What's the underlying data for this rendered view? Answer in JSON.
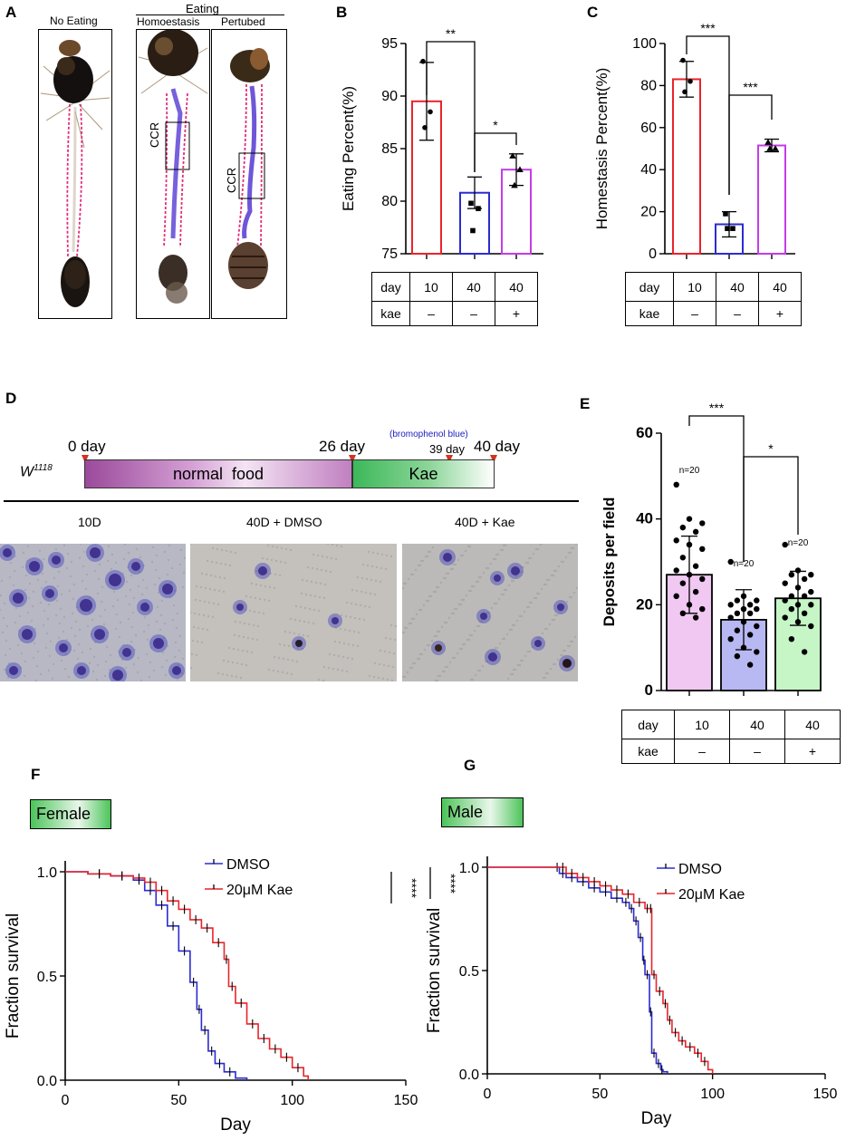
{
  "panels": {
    "A": {
      "letter": "A",
      "no_eating": "No Eating",
      "eating": "Eating",
      "homeostasis": "Homoestasis",
      "perturbed": "Pertubed",
      "ccr": "CCR"
    },
    "B": {
      "letter": "B"
    },
    "C": {
      "letter": "C"
    },
    "D": {
      "letter": "D",
      "day0": "0 day",
      "day26": "26 day",
      "day39": "39 day",
      "day40": "40 day",
      "dye": "(bromophenol blue)",
      "strain": "W",
      "strain_sup": "1118",
      "normal_food": "normal  food",
      "kae": "Kae",
      "img_labels": [
        "10D",
        "40D + DMSO",
        "40D + Kae"
      ]
    },
    "E": {
      "letter": "E"
    },
    "F": {
      "letter": "F",
      "badge": "Female"
    },
    "G": {
      "letter": "G",
      "badge": "Male"
    }
  },
  "condition_table": {
    "row1": [
      "day",
      "10",
      "40",
      "40"
    ],
    "row2": [
      "kae",
      "–",
      "–",
      "+"
    ]
  },
  "colors": {
    "red": "#e8242b",
    "blue": "#2b2bd1",
    "magenta": "#c43ce6",
    "purple_food": "#9b4a9b",
    "green_kae": "#3cb85a",
    "pink_fill": "#f0c8f2",
    "lavender_fill": "#b8b8f2",
    "mint_fill": "#c6f6c6",
    "arrow": "#d4331e",
    "dye_blue": "#2020c0"
  },
  "chart_data": [
    {
      "id": "B",
      "type": "bar",
      "categories": [
        "10 day, kae –",
        "40 day, kae –",
        "40 day, kae +"
      ],
      "values": [
        89.5,
        80.8,
        83.0
      ],
      "errors": [
        3.7,
        1.5,
        1.5
      ],
      "points": [
        [
          93.3,
          88.5,
          87.0
        ],
        [
          79.8,
          79.3,
          77.2
        ],
        [
          84.3,
          83.0,
          81.5
        ]
      ],
      "ylabel": "Eating Percent(%)",
      "ylim": [
        75,
        95
      ],
      "yticks": [
        75,
        80,
        85,
        90,
        95
      ],
      "significance": [
        "**",
        "*"
      ]
    },
    {
      "id": "C",
      "type": "bar",
      "categories": [
        "10 day, kae –",
        "40 day, kae –",
        "40 day, kae +"
      ],
      "values": [
        83.0,
        14.0,
        51.5
      ],
      "errors": [
        8.5,
        6.0,
        3.0
      ],
      "points": [
        [
          92,
          82,
          77
        ],
        [
          19,
          12,
          12
        ],
        [
          53,
          50,
          50
        ]
      ],
      "ylabel": "Homestasis Percent(%)",
      "ylim": [
        0,
        100
      ],
      "yticks": [
        0,
        20,
        40,
        60,
        80,
        100
      ],
      "significance": [
        "***",
        "***"
      ]
    },
    {
      "id": "E",
      "type": "bar",
      "categories": [
        "10 day, kae –",
        "40 day, kae –",
        "40 day, kae +"
      ],
      "values": [
        27,
        16.5,
        21.5
      ],
      "errors": [
        9,
        7,
        6.3
      ],
      "n_labels": [
        "n=20",
        "n=20",
        "n=20"
      ],
      "points": [
        [
          48,
          40,
          39,
          38,
          37,
          35,
          34,
          33,
          31,
          29,
          28,
          27,
          26,
          25,
          23,
          22,
          20,
          19,
          18,
          17
        ],
        [
          30,
          22,
          21,
          21,
          20,
          20,
          19,
          19,
          18,
          18,
          17,
          16,
          15,
          14,
          13,
          12,
          10,
          9,
          8,
          6
        ],
        [
          34,
          28,
          27,
          27,
          26,
          25,
          24,
          23,
          22,
          22,
          21,
          20,
          20,
          19,
          18,
          17,
          16,
          15,
          12,
          9
        ]
      ],
      "ylabel": "Deposits per field",
      "ylim": [
        0,
        60
      ],
      "yticks": [
        0,
        20,
        40,
        60
      ],
      "significance": [
        "***",
        "*"
      ]
    },
    {
      "id": "F",
      "type": "line",
      "xlabel": "Day",
      "ylabel": "Fraction survival",
      "xlim": [
        0,
        150
      ],
      "ylim": [
        0,
        1
      ],
      "xticks": [
        0,
        50,
        100,
        150
      ],
      "yticks": [
        "0.0",
        "0.5",
        "1.0"
      ],
      "significance": "****",
      "series": [
        {
          "name": "DMSO",
          "color": "#2b2bd1",
          "x": [
            0,
            10,
            20,
            30,
            35,
            40,
            45,
            50,
            55,
            58,
            60,
            63,
            66,
            70,
            75,
            80
          ],
          "y": [
            1.0,
            0.99,
            0.98,
            0.96,
            0.91,
            0.84,
            0.74,
            0.62,
            0.47,
            0.34,
            0.24,
            0.14,
            0.08,
            0.04,
            0.01,
            0.0
          ]
        },
        {
          "name": "20μM Kae",
          "color": "#e8242b",
          "x": [
            0,
            10,
            20,
            30,
            35,
            40,
            45,
            50,
            55,
            60,
            65,
            70,
            72,
            75,
            80,
            85,
            90,
            95,
            100,
            105,
            107
          ],
          "y": [
            1.0,
            0.99,
            0.98,
            0.97,
            0.95,
            0.91,
            0.86,
            0.82,
            0.77,
            0.73,
            0.66,
            0.58,
            0.45,
            0.37,
            0.27,
            0.2,
            0.15,
            0.11,
            0.06,
            0.02,
            0.0
          ]
        }
      ]
    },
    {
      "id": "G",
      "type": "line",
      "xlabel": "Day",
      "ylabel": "Fraction survival",
      "xlim": [
        0,
        150
      ],
      "ylim": [
        0,
        1
      ],
      "xticks": [
        0,
        50,
        100,
        150
      ],
      "yticks": [
        "0.0",
        "0.5",
        "1.0"
      ],
      "significance": "****",
      "series": [
        {
          "name": "DMSO",
          "color": "#2b2bd1",
          "x": [
            0,
            30,
            32,
            35,
            40,
            45,
            50,
            55,
            60,
            63,
            65,
            67,
            69,
            70,
            72,
            73,
            75,
            77,
            78,
            80
          ],
          "y": [
            1.0,
            1.0,
            0.97,
            0.95,
            0.93,
            0.9,
            0.88,
            0.85,
            0.83,
            0.8,
            0.74,
            0.66,
            0.55,
            0.48,
            0.3,
            0.1,
            0.05,
            0.02,
            0.01,
            0.0
          ]
        },
        {
          "name": "20μM Kae",
          "color": "#e8242b",
          "x": [
            0,
            32,
            35,
            40,
            45,
            50,
            55,
            60,
            65,
            70,
            72,
            73,
            75,
            78,
            80,
            82,
            85,
            88,
            92,
            95,
            98,
            100
          ],
          "y": [
            1.0,
            1.0,
            0.97,
            0.95,
            0.93,
            0.91,
            0.89,
            0.87,
            0.83,
            0.8,
            0.8,
            0.48,
            0.4,
            0.34,
            0.26,
            0.2,
            0.16,
            0.13,
            0.1,
            0.06,
            0.02,
            0.0
          ]
        }
      ]
    }
  ]
}
